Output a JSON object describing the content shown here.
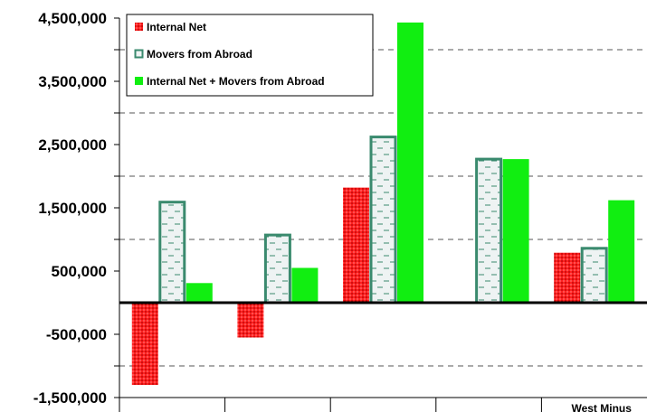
{
  "chart_data": {
    "type": "bar",
    "categories": [
      "",
      "",
      "",
      "",
      "West Minus"
    ],
    "series": [
      {
        "name": "Internal  Net",
        "values": [
          -1300000,
          -550000,
          1820000,
          20000,
          790000
        ]
      },
      {
        "name": "Movers from Abroad",
        "values": [
          1590000,
          1070000,
          2620000,
          2270000,
          860000
        ]
      },
      {
        "name": "Internal  Net + Movers from Abroad",
        "values": [
          310000,
          550000,
          4430000,
          2270000,
          1620000
        ]
      }
    ],
    "yticks": [
      4500000,
      3500000,
      2500000,
      1500000,
      500000,
      -500000,
      -1500000
    ],
    "ytick_labels": [
      "4,500,000",
      "3,500,000",
      "2,500,000",
      "1,500,000",
      "500,000",
      "-500,000",
      "-1,500,000"
    ],
    "gridlines": [
      4000000,
      3000000,
      2000000,
      1000000,
      -1000000
    ],
    "ylim": [
      -1500000,
      4500000
    ],
    "grid": true,
    "legend_position": "top-left",
    "colors": {
      "internal_net": "#ff2020",
      "internal_net_dots": "#b00000",
      "movers_border": "#3a8a6e",
      "movers_fill": "#eef3f3",
      "movers_dash": "#3a8a6e",
      "combined": "#11ee11",
      "grid": "#555555",
      "baseline": "#000000"
    }
  }
}
